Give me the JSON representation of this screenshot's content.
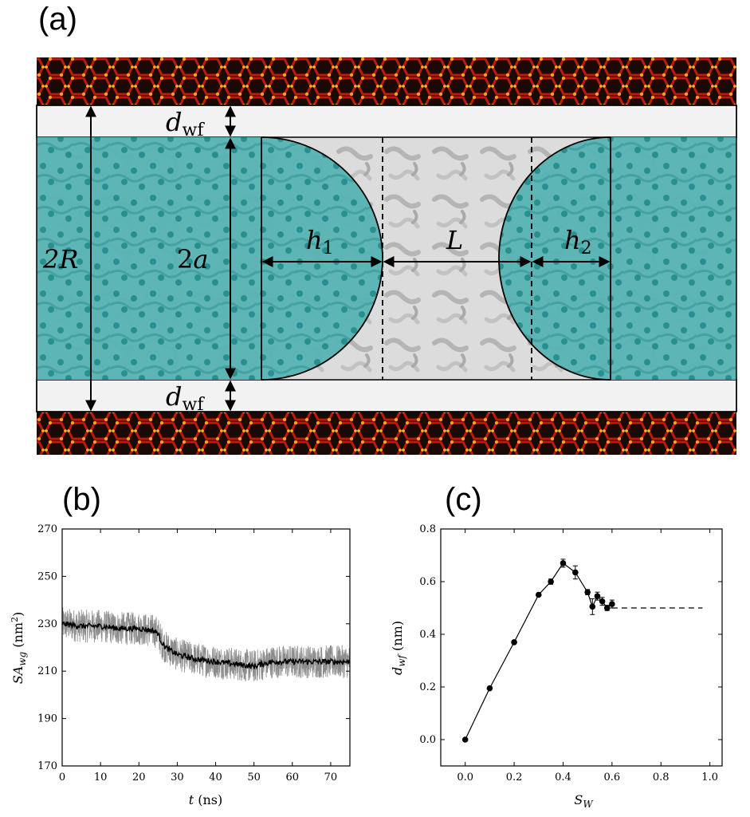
{
  "panel_labels": {
    "a": "(a)",
    "b": "(b)",
    "c": "(c)"
  },
  "schematic": {
    "labels": {
      "d_wf_base": "d",
      "d_wf_sub": "wf",
      "two_R": "2R",
      "two_a_num": "2",
      "two_a_var": "a",
      "h1_base": "h",
      "h1_sub": "1",
      "h2_base": "h",
      "h2_sub": "2",
      "L": "L"
    },
    "colors": {
      "water": "#2f9c9c",
      "water_fill": "#57b3b3",
      "gas_bg": "#d9d9d9",
      "film": "#f2f2f2",
      "wall_dark": "#1a0a05",
      "wall_red": "#c0180a",
      "wall_orange": "#f5a21a"
    }
  },
  "chart_data": [
    {
      "type": "line",
      "panel": "(b)",
      "title": "",
      "xlabel_var": "t",
      "xlabel_unit": " (ns)",
      "ylabel_base": "SA",
      "ylabel_sub": "wg",
      "ylabel_unit": " (nm",
      "ylabel_exp": "2",
      "ylabel_close": ")",
      "xlim": [
        0,
        75
      ],
      "ylim": [
        170,
        270
      ],
      "xticks": [
        0,
        10,
        20,
        30,
        40,
        50,
        60,
        70
      ],
      "yticks": [
        170,
        190,
        210,
        230,
        250,
        270
      ],
      "series": [
        {
          "name": "raw",
          "color": "#8c8c8c",
          "noise_amplitude": 7,
          "x": [
            0,
            5,
            10,
            15,
            20,
            24,
            25,
            26,
            27,
            30,
            35,
            40,
            45,
            50,
            52,
            55,
            60,
            65,
            70,
            75
          ],
          "values": [
            230,
            229,
            229,
            228,
            228,
            227,
            226,
            222,
            220,
            217,
            215,
            214,
            213,
            212,
            213,
            214,
            214,
            214,
            214,
            214
          ]
        },
        {
          "name": "average",
          "color": "#000000",
          "noise_amplitude": 1.2,
          "x": [
            0,
            5,
            10,
            15,
            20,
            24,
            25,
            26,
            27,
            30,
            35,
            40,
            45,
            50,
            52,
            55,
            60,
            65,
            70,
            75
          ],
          "values": [
            230,
            229,
            229,
            228,
            228,
            227,
            226,
            222,
            220,
            217,
            215,
            214,
            213,
            212,
            213,
            214,
            214,
            214,
            214,
            214
          ]
        }
      ]
    },
    {
      "type": "line",
      "panel": "(c)",
      "title": "",
      "xlabel_base": "S",
      "xlabel_sub": "W",
      "ylabel_base": "d",
      "ylabel_sub": "wf",
      "ylabel_unit": " (nm)",
      "xlim": [
        -0.1,
        1.05
      ],
      "ylim": [
        -0.1,
        0.8
      ],
      "xticks": [
        0.0,
        0.2,
        0.4,
        0.6,
        0.8,
        1.0
      ],
      "yticks": [
        0.0,
        0.2,
        0.4,
        0.6,
        0.8
      ],
      "series": [
        {
          "name": "d_wf",
          "color": "#000000",
          "x": [
            0.0,
            0.1,
            0.2,
            0.3,
            0.35,
            0.4,
            0.45,
            0.5,
            0.52,
            0.54,
            0.56,
            0.58,
            0.6
          ],
          "values": [
            0.0,
            0.195,
            0.37,
            0.55,
            0.6,
            0.67,
            0.635,
            0.56,
            0.505,
            0.545,
            0.525,
            0.5,
            0.515
          ],
          "errors": [
            0,
            0,
            0,
            0,
            0.01,
            0.015,
            0.025,
            0.01,
            0.03,
            0.015,
            0.015,
            0.01,
            0.015
          ]
        }
      ],
      "reference_line": {
        "x": [
          0.6,
          0.97
        ],
        "y": 0.5,
        "style": "dashed"
      }
    }
  ]
}
